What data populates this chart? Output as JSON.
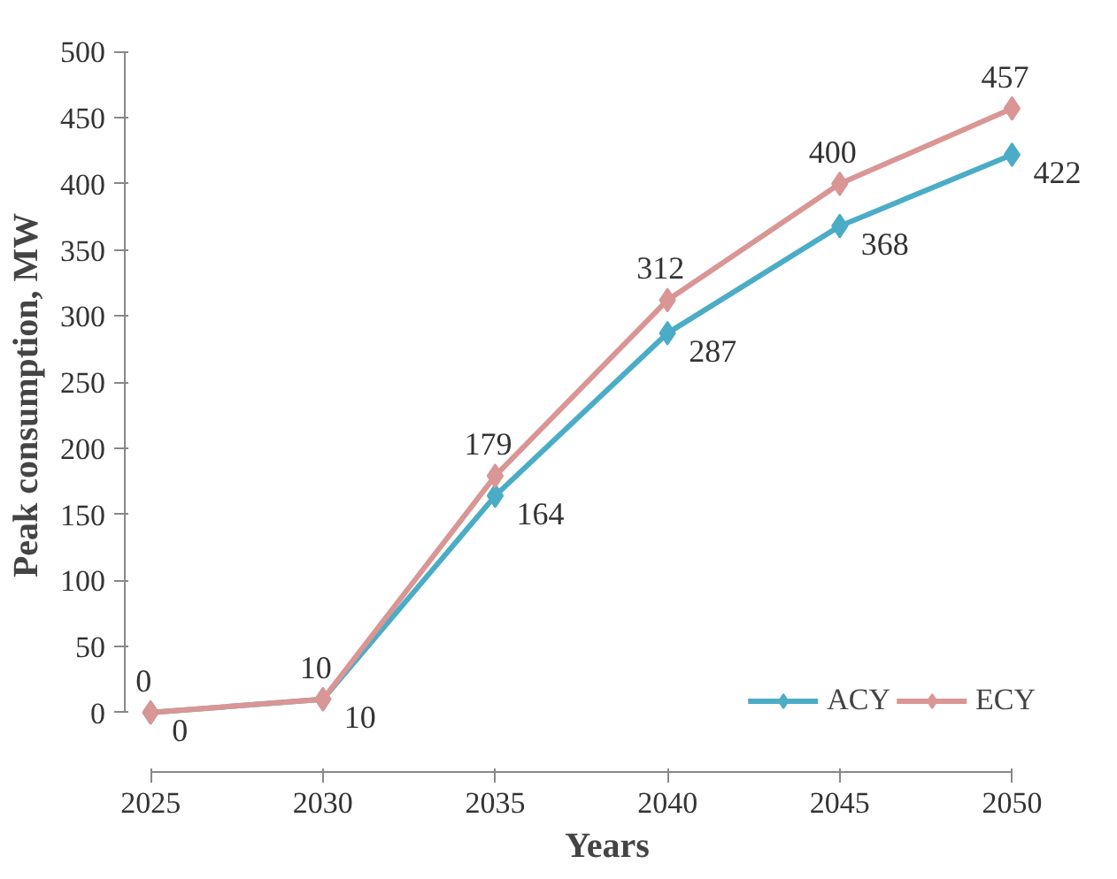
{
  "chart_data": {
    "type": "line",
    "xlabel": "Years",
    "ylabel": "Peak consumption, MW",
    "x": [
      2025,
      2030,
      2035,
      2040,
      2045,
      2050
    ],
    "series": [
      {
        "name": "ACY",
        "color": "#4bacc6",
        "values": [
          0,
          10,
          164,
          287,
          368,
          422
        ]
      },
      {
        "name": "ECY",
        "color": "#d99694",
        "values": [
          0,
          10,
          179,
          312,
          400,
          457
        ]
      }
    ],
    "xlim": [
      2025,
      2050
    ],
    "xticks": [
      2025,
      2030,
      2035,
      2040,
      2045,
      2050
    ],
    "ylim": [
      0,
      500
    ],
    "yticks": [
      0,
      50,
      100,
      150,
      200,
      250,
      300,
      350,
      400,
      450,
      500
    ],
    "grid": false,
    "legend": "bottom right",
    "marker": "diamond",
    "line_style": "solid",
    "data_labels": true
  }
}
